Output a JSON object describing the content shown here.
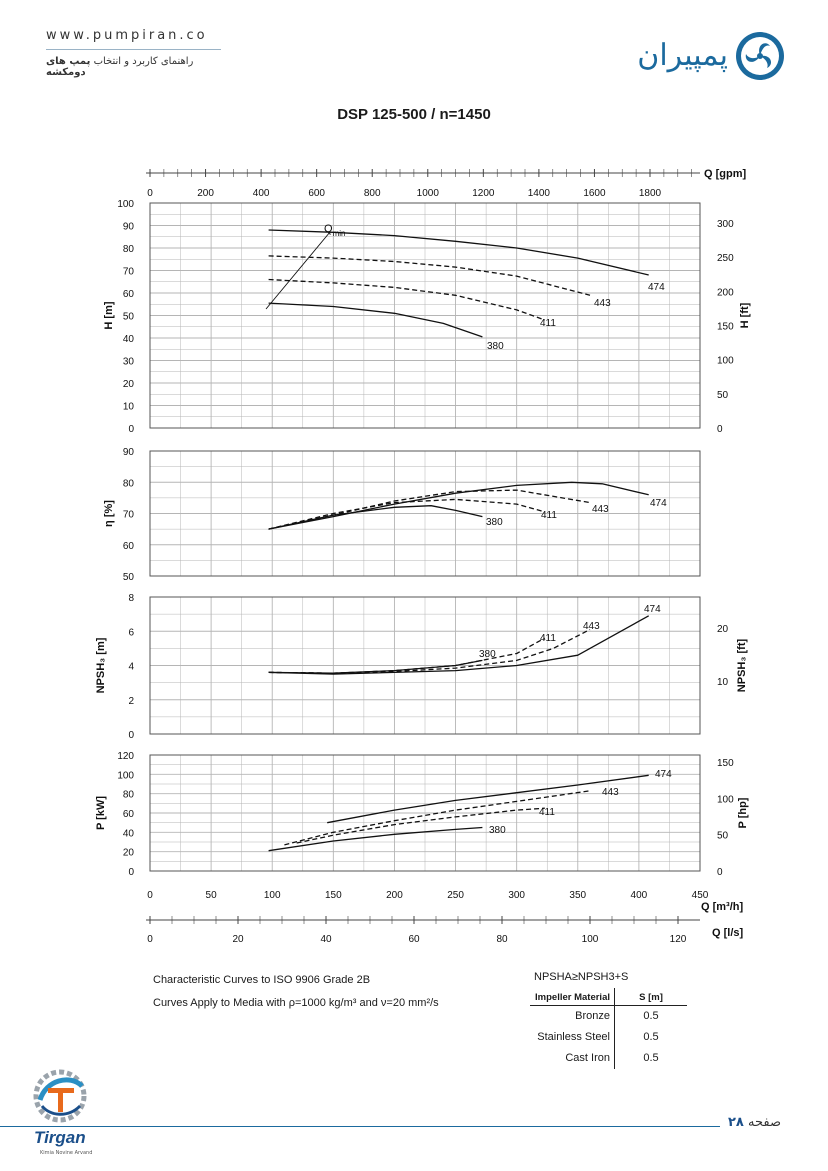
{
  "header": {
    "website": "www.pumpiran.co",
    "subtitle_plain": "راهنمای کاربرد و انتخاب",
    "subtitle_bold": "پمپ های دومکشه",
    "brand_name": "پمپیران",
    "brand_color": "#1b6a9e"
  },
  "chart_data": {
    "type": "line",
    "title": "DSP 125-500 / n=1450",
    "x_axes": {
      "gpm": {
        "label": "Q [gpm]",
        "ticks": [
          "0",
          "200",
          "400",
          "600",
          "800",
          "1000",
          "1200",
          "1400",
          "1600",
          "1800"
        ],
        "range": [
          0,
          1980
        ]
      },
      "m3h": {
        "label": "Q [m³/h]",
        "ticks": [
          "0",
          "50",
          "100",
          "150",
          "200",
          "250",
          "300",
          "350",
          "400",
          "450"
        ],
        "range": [
          0,
          450
        ]
      },
      "ls": {
        "label": "Q [l/s]",
        "ticks": [
          "0",
          "20",
          "40",
          "60",
          "80",
          "100",
          "120"
        ],
        "range": [
          0,
          125
        ]
      }
    },
    "panels": [
      {
        "id": "head",
        "ylabel": "H [m]",
        "ylim": [
          0,
          100
        ],
        "yticks": [
          "0",
          "10",
          "20",
          "30",
          "40",
          "50",
          "60",
          "70",
          "80",
          "90",
          "100"
        ],
        "y2label": "H [ft]",
        "y2ticks": [
          "0",
          "50",
          "100",
          "150",
          "200",
          "250",
          "300"
        ],
        "annotation": "Qmin",
        "series": [
          {
            "name": "474",
            "style": "solid",
            "x": [
              97,
              150,
              200,
              250,
              300,
              350,
              408
            ],
            "y": [
              88,
              87,
              85.5,
              83,
              80,
              75.5,
              68
            ]
          },
          {
            "name": "443",
            "style": "dashed",
            "x": [
              97,
              150,
              200,
              250,
              300,
              360
            ],
            "y": [
              76.5,
              75.5,
              74,
              71.5,
              67.5,
              59
            ]
          },
          {
            "name": "411",
            "style": "dashed",
            "x": [
              97,
              150,
              200,
              250,
              300,
              323
            ],
            "y": [
              66,
              64.5,
              62.5,
              59,
              52.5,
              48
            ]
          },
          {
            "name": "380",
            "style": "solid",
            "x": [
              97,
              150,
              200,
              240,
              272
            ],
            "y": [
              55.5,
              54,
              51,
              46.5,
              40.5
            ]
          }
        ]
      },
      {
        "id": "efficiency",
        "ylabel": "η [%]",
        "ylim": [
          50,
          90
        ],
        "yticks": [
          "50",
          "60",
          "70",
          "80",
          "90"
        ],
        "series": [
          {
            "name": "474",
            "style": "solid",
            "x": [
              97,
              150,
              200,
              250,
              300,
              345,
              370,
              408
            ],
            "y": [
              65,
              69,
              73,
              76.5,
              79,
              80,
              79.5,
              76
            ]
          },
          {
            "name": "443",
            "style": "dashed",
            "x": [
              97,
              150,
              200,
              250,
              300,
              360
            ],
            "y": [
              65,
              69.5,
              74,
              77,
              77.5,
              73.5
            ]
          },
          {
            "name": "411",
            "style": "dashed",
            "x": [
              97,
              150,
              200,
              250,
              300,
              323
            ],
            "y": [
              65,
              70,
              73.5,
              74.5,
              73,
              70.5
            ]
          },
          {
            "name": "380",
            "style": "solid",
            "x": [
              97,
              150,
              200,
              230,
              250,
              272
            ],
            "y": [
              65,
              69.5,
              72,
              72.5,
              71,
              69
            ]
          }
        ]
      },
      {
        "id": "npsh",
        "ylabel": "NPSH₃ [m]",
        "ylim": [
          0,
          8
        ],
        "yticks": [
          "0",
          "2",
          "4",
          "6",
          "8"
        ],
        "y2label": "NPSH₃ [ft]",
        "y2ticks": [
          "10",
          "20"
        ],
        "series": [
          {
            "name": "474",
            "style": "solid",
            "x": [
              97,
              150,
              200,
              250,
              300,
              350,
              408
            ],
            "y": [
              3.6,
              3.5,
              3.6,
              3.7,
              4.0,
              4.6,
              6.9
            ]
          },
          {
            "name": "443",
            "style": "dashed",
            "x": [
              97,
              150,
              200,
              250,
              300,
              330,
              360
            ],
            "y": [
              3.6,
              3.55,
              3.65,
              3.85,
              4.3,
              5.0,
              6.1
            ]
          },
          {
            "name": "411",
            "style": "dashed",
            "x": [
              97,
              150,
              200,
              250,
              300,
              323
            ],
            "y": [
              3.6,
              3.55,
              3.7,
              4.0,
              4.7,
              5.6
            ]
          },
          {
            "name": "380",
            "style": "solid",
            "x": [
              97,
              150,
              200,
              250,
              272
            ],
            "y": [
              3.6,
              3.55,
              3.7,
              4.0,
              4.3
            ]
          }
        ]
      },
      {
        "id": "power",
        "ylabel": "P [kW]",
        "ylim": [
          0,
          120
        ],
        "yticks": [
          "0",
          "20",
          "40",
          "60",
          "80",
          "100",
          "120"
        ],
        "y2label": "P [hp]",
        "y2ticks": [
          "0",
          "50",
          "100",
          "150"
        ],
        "series": [
          {
            "name": "474",
            "style": "solid",
            "x": [
              145,
              200,
              250,
              300,
              350,
              408
            ],
            "y": [
              50,
              63,
              73,
              81,
              89,
              99
            ]
          },
          {
            "name": "443",
            "style": "dashed",
            "x": [
              110,
              150,
              200,
              250,
              300,
              360
            ],
            "y": [
              27,
              40,
              52,
              63,
              72,
              83
            ]
          },
          {
            "name": "411",
            "style": "dashed",
            "x": [
              120,
              150,
              200,
              250,
              300,
              323
            ],
            "y": [
              29,
              37,
              48,
              56,
              63,
              65
            ]
          },
          {
            "name": "380",
            "style": "solid",
            "x": [
              97,
              150,
              200,
              250,
              272
            ],
            "y": [
              21,
              31,
              38,
              43,
              45
            ]
          }
        ]
      }
    ]
  },
  "notes": {
    "line1": "Characteristic Curves to ISO 9906 Grade 2B",
    "line2": "Curves Apply to Media with  ρ=1000 kg/m³ and ν=20 mm²/s"
  },
  "npsh_table": {
    "title": "NPSHA≥NPSH3+S",
    "col1": "Impeller Material",
    "col2": "S [m]",
    "rows": [
      {
        "material": "Bronze",
        "s": "0.5"
      },
      {
        "material": "Stainless Steel",
        "s": "0.5"
      },
      {
        "material": "Cast Iron",
        "s": "0.5"
      }
    ]
  },
  "footer": {
    "page_word": "صفحه",
    "page_number": "۲۸",
    "company": "Tirgan",
    "company_sub": "Kimia Novine Arvand"
  }
}
